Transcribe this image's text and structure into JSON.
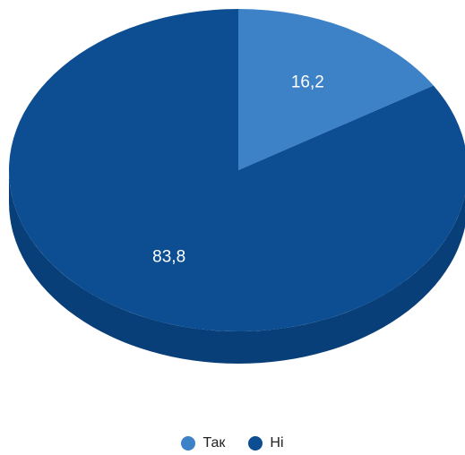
{
  "chart_data": {
    "type": "pie",
    "style": "3d",
    "title": "",
    "categories": [
      "Так",
      "Ні"
    ],
    "values": [
      16.2,
      83.8
    ],
    "data_labels": [
      "16,2",
      "83,8"
    ],
    "colors": [
      "#3d82c6",
      "#0d4e92"
    ],
    "side_colors": [
      "#1e5a96",
      "#083f78"
    ],
    "legend_position": "bottom"
  },
  "colors": {
    "label_text": "#ffffff",
    "legend_text": "#222222"
  }
}
